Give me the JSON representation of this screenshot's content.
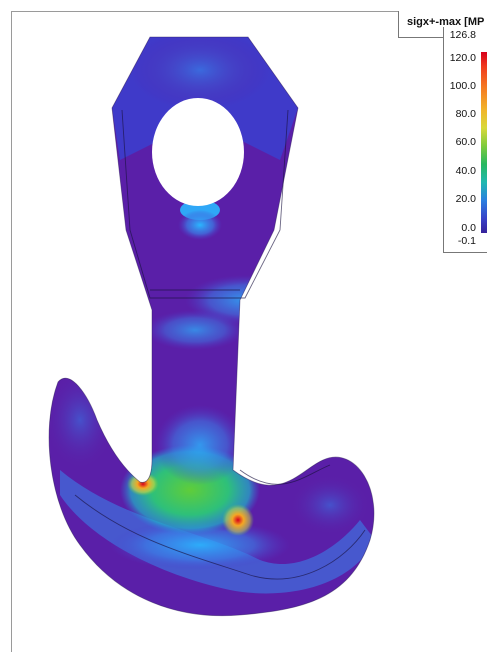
{
  "legend": {
    "title": "sigx+-max [MP",
    "max_label": "126.8",
    "min_label": "-0.1",
    "ticks": [
      "120.0",
      "100.0",
      "80.0",
      "60.0",
      "40.0",
      "20.0",
      "0.0"
    ]
  },
  "colors": {
    "low": "#5b1fa6",
    "mid_low": "#3a6fe0",
    "mid": "#22b8a8",
    "mid_high": "#6fd03a",
    "high": "#f29b22",
    "max": "#d6001c"
  }
}
